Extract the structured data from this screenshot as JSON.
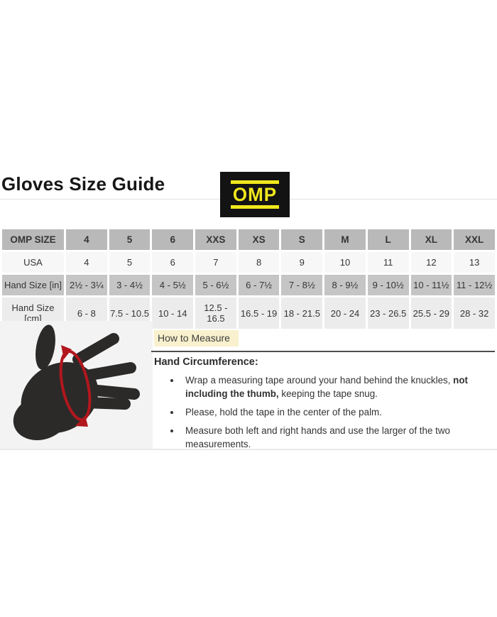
{
  "page": {
    "title": "Gloves Size Guide"
  },
  "logo": {
    "text": "OMP"
  },
  "size_table": {
    "header": [
      "OMP SIZE",
      "4",
      "5",
      "6",
      "XXS",
      "XS",
      "S",
      "M",
      "L",
      "XL",
      "XXL"
    ],
    "rows": [
      {
        "label": "USA",
        "values": [
          "4",
          "5",
          "6",
          "7",
          "8",
          "9",
          "10",
          "11",
          "12",
          "13"
        ]
      },
      {
        "label": "Hand Size [in]",
        "values": [
          "2½ - 3¼",
          "3 - 4½",
          "4 - 5½",
          "5 - 6½",
          "6 - 7½",
          "7 - 8½",
          "8 - 9½",
          "9 - 10½",
          "10 - 11½",
          "11 - 12½"
        ]
      },
      {
        "label": "Hand Size [cm]",
        "values": [
          "6 - 8",
          "7.5 - 10.5",
          "10 - 14",
          "12.5 - 16.5",
          "16.5 - 19",
          "18 - 21.5",
          "20 - 24",
          "23 - 26.5",
          "25.5 - 29",
          "28 - 32"
        ]
      }
    ]
  },
  "measure": {
    "section_label": "How to Measure",
    "heading": "Hand Circumference:",
    "bullets": [
      {
        "pre": "Wrap a measuring tape around your hand behind the knuckles, ",
        "bold": "not including the thumb,",
        "post": " keeping the tape snug."
      },
      {
        "pre": "Please, hold the tape in the center of the palm.",
        "bold": "",
        "post": ""
      },
      {
        "pre": "Measure both left and right hands and use the larger of the two measurements.",
        "bold": "",
        "post": ""
      }
    ]
  },
  "colors": {
    "logo-yellow": "#f0e71d",
    "tape-red": "#b1171d",
    "highlight-yellow": "#f9f1cd",
    "table-header-gray": "#b9b9b9",
    "table-row-gray": "#c5c5c5",
    "table-light": "#f7f7f7",
    "table-light2": "#ececec",
    "hand-black": "#2b2a29"
  }
}
